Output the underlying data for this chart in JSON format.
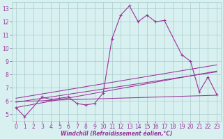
{
  "xlabel": "Windchill (Refroidissement éolien,°C)",
  "x": [
    0,
    1,
    2,
    3,
    4,
    5,
    6,
    7,
    8,
    9,
    10,
    11,
    12,
    13,
    14,
    15,
    16,
    17,
    18,
    19,
    20,
    21,
    22,
    23
  ],
  "main_line_x": [
    0,
    1,
    3,
    4,
    5,
    6,
    7,
    8,
    9,
    10,
    11,
    12,
    13,
    14,
    15,
    16,
    17,
    19,
    20,
    21,
    22,
    23
  ],
  "main_line_y": [
    5.5,
    4.8,
    6.3,
    6.1,
    6.2,
    6.3,
    5.8,
    5.7,
    5.8,
    6.6,
    10.7,
    12.5,
    13.2,
    12.0,
    12.5,
    12.0,
    12.1,
    9.5,
    9.0,
    6.7,
    7.8,
    6.5
  ],
  "trend1_y": [
    5.5,
    5.62,
    5.74,
    5.86,
    5.98,
    6.1,
    6.22,
    6.34,
    6.46,
    6.58,
    6.7,
    6.82,
    6.94,
    7.06,
    7.18,
    7.3,
    7.42,
    7.54,
    7.66,
    7.78,
    7.9,
    8.02,
    8.14,
    8.26
  ],
  "trend2_y": [
    5.9,
    6.0,
    6.1,
    6.2,
    6.3,
    6.4,
    6.5,
    6.6,
    6.7,
    6.8,
    6.9,
    7.0,
    7.1,
    7.2,
    7.3,
    7.4,
    7.5,
    7.6,
    7.7,
    7.8,
    7.9,
    8.0,
    8.1,
    8.2
  ],
  "trend3_y": [
    6.2,
    6.31,
    6.42,
    6.53,
    6.64,
    6.75,
    6.86,
    6.97,
    7.08,
    7.19,
    7.3,
    7.41,
    7.52,
    7.63,
    7.74,
    7.85,
    7.96,
    8.07,
    8.18,
    8.29,
    8.4,
    8.51,
    8.62,
    8.73
  ],
  "flat_y": [
    5.95,
    5.97,
    5.99,
    6.01,
    6.05,
    6.07,
    6.09,
    6.11,
    6.13,
    6.15,
    6.17,
    6.19,
    6.21,
    6.23,
    6.25,
    6.27,
    6.29,
    6.31,
    6.33,
    6.35,
    6.37,
    6.39,
    6.41,
    6.43
  ],
  "color": "#993399",
  "bg_color": "#d8f0f0",
  "grid_color": "#aacccc",
  "ylim": [
    4.5,
    13.5
  ],
  "yticks": [
    5,
    6,
    7,
    8,
    9,
    10,
    11,
    12,
    13
  ],
  "xticks": [
    0,
    1,
    2,
    3,
    4,
    5,
    6,
    7,
    8,
    9,
    10,
    11,
    12,
    13,
    14,
    15,
    16,
    17,
    18,
    19,
    20,
    21,
    22,
    23
  ],
  "tick_fontsize": 5.5,
  "xlabel_fontsize": 5.5
}
